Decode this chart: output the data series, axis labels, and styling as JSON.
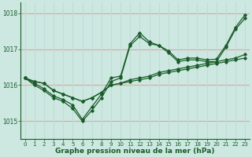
{
  "xlabel": "Graphe pression niveau de la mer (hPa)",
  "ylim": [
    1014.5,
    1018.3
  ],
  "xlim": [
    -0.5,
    23.5
  ],
  "yticks": [
    1015,
    1016,
    1017,
    1018
  ],
  "xtick_labels": [
    "0",
    "1",
    "2",
    "3",
    "4",
    "5",
    "6",
    "7",
    "8",
    "9",
    "10",
    "11",
    "12",
    "13",
    "14",
    "15",
    "16",
    "17",
    "18",
    "19",
    "20",
    "21",
    "22",
    "23"
  ],
  "bg_color": "#cce8e0",
  "line_color": "#1a5c2a",
  "grid_color_h": "#e8a0a0",
  "grid_color_v": "#c0dcd6",
  "series": [
    [
      1016.2,
      1016.1,
      1016.05,
      1015.85,
      1015.75,
      1015.65,
      1015.55,
      1015.65,
      1015.8,
      1016.0,
      1016.05,
      1016.1,
      1016.15,
      1016.2,
      1016.3,
      1016.35,
      1016.4,
      1016.45,
      1016.5,
      1016.55,
      1016.6,
      1016.65,
      1016.7,
      1016.75
    ],
    [
      1016.2,
      1016.1,
      1016.05,
      1015.85,
      1015.75,
      1015.65,
      1015.55,
      1015.65,
      1015.8,
      1016.0,
      1016.05,
      1016.15,
      1016.2,
      1016.25,
      1016.35,
      1016.4,
      1016.45,
      1016.5,
      1016.55,
      1016.6,
      1016.65,
      1016.7,
      1016.75,
      1016.85
    ],
    [
      1016.2,
      1016.0,
      1015.85,
      1015.65,
      1015.55,
      1015.35,
      1015.0,
      1015.3,
      1015.65,
      1016.1,
      1016.2,
      1017.1,
      1017.35,
      1017.15,
      1017.1,
      1016.9,
      1016.65,
      1016.7,
      1016.7,
      1016.65,
      1016.65,
      1017.05,
      1017.55,
      1017.85
    ],
    [
      1016.2,
      1016.05,
      1015.9,
      1015.7,
      1015.6,
      1015.45,
      1015.05,
      1015.4,
      1015.75,
      1016.2,
      1016.25,
      1017.15,
      1017.45,
      1017.2,
      1017.1,
      1016.95,
      1016.7,
      1016.75,
      1016.75,
      1016.7,
      1016.72,
      1017.1,
      1017.6,
      1017.95
    ]
  ]
}
